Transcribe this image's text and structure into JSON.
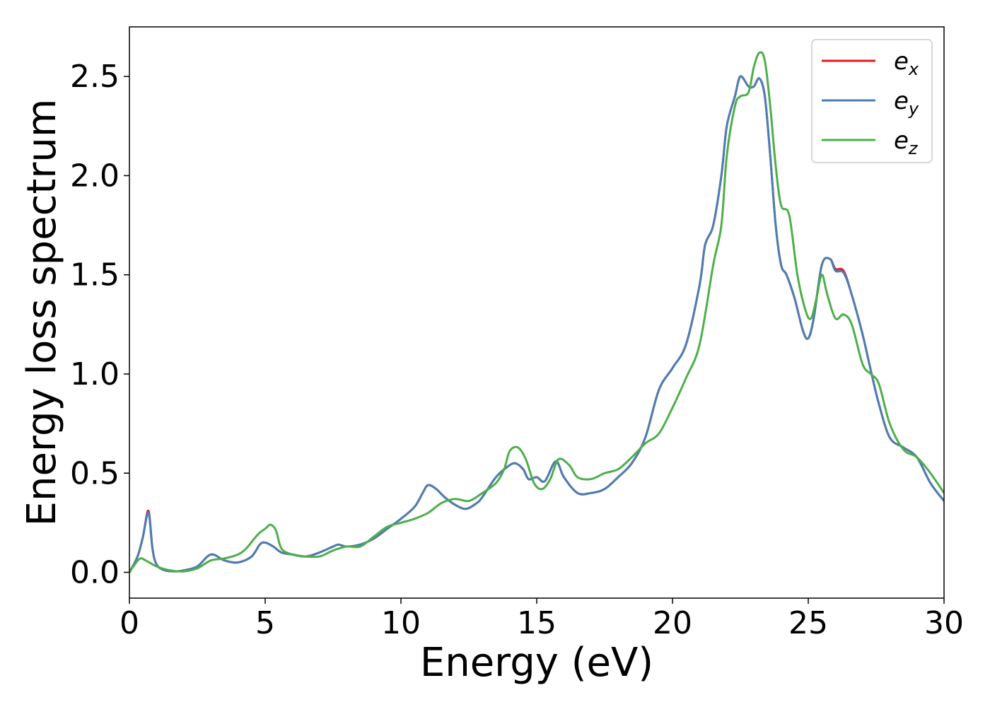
{
  "chart_data": {
    "type": "line",
    "title": "",
    "xlabel": "Energy (eV)",
    "ylabel": "Energy loss spectrum",
    "xlim": [
      0,
      30
    ],
    "ylim": [
      -0.13,
      2.75
    ],
    "xticks": [
      0,
      5,
      10,
      15,
      20,
      25,
      30
    ],
    "xtick_labels": [
      "0",
      "5",
      "10",
      "15",
      "20",
      "25",
      "30"
    ],
    "yticks": [
      0.0,
      0.5,
      1.0,
      1.5,
      2.0,
      2.5
    ],
    "ytick_labels": [
      "0.0",
      "0.5",
      "1.0",
      "1.5",
      "2.0",
      "2.5"
    ],
    "grid": false,
    "legend_position": "top-right",
    "series": [
      {
        "name": "e_x",
        "label_base": "e",
        "label_sub": "x",
        "color": "#e41a1c",
        "x": [
          0,
          0.3,
          0.5,
          0.7,
          0.85,
          1.0,
          1.3,
          1.7,
          2.0,
          2.5,
          3.0,
          3.5,
          4.0,
          4.5,
          4.8,
          5.0,
          5.3,
          5.6,
          6.0,
          6.5,
          7.0,
          7.5,
          7.7,
          8.0,
          8.5,
          9.0,
          9.5,
          10.0,
          10.5,
          10.8,
          11.0,
          11.3,
          11.6,
          12.0,
          12.4,
          12.8,
          13.0,
          13.5,
          13.9,
          14.2,
          14.5,
          14.7,
          15.0,
          15.3,
          15.7,
          16.0,
          16.5,
          17.0,
          17.5,
          18.0,
          18.5,
          19.0,
          19.5,
          20.0,
          20.5,
          21.0,
          21.2,
          21.5,
          21.8,
          22.0,
          22.3,
          22.5,
          22.8,
          23.0,
          23.2,
          23.4,
          23.6,
          23.8,
          24.0,
          24.2,
          24.5,
          24.8,
          25.0,
          25.2,
          25.5,
          25.8,
          26.0,
          26.3,
          26.6,
          27.0,
          27.3,
          27.6,
          28.0,
          28.5,
          29.0,
          29.5,
          30.0
        ],
        "y": [
          0.0,
          0.08,
          0.18,
          0.31,
          0.12,
          0.04,
          0.01,
          0.005,
          0.01,
          0.03,
          0.09,
          0.06,
          0.05,
          0.08,
          0.14,
          0.15,
          0.13,
          0.1,
          0.09,
          0.08,
          0.1,
          0.13,
          0.14,
          0.13,
          0.14,
          0.17,
          0.22,
          0.27,
          0.33,
          0.4,
          0.44,
          0.42,
          0.38,
          0.34,
          0.32,
          0.35,
          0.38,
          0.48,
          0.53,
          0.55,
          0.52,
          0.47,
          0.48,
          0.46,
          0.56,
          0.48,
          0.4,
          0.4,
          0.42,
          0.48,
          0.55,
          0.68,
          0.92,
          1.03,
          1.15,
          1.45,
          1.65,
          1.75,
          2.0,
          2.25,
          2.4,
          2.5,
          2.45,
          2.45,
          2.49,
          2.4,
          2.1,
          1.75,
          1.55,
          1.5,
          1.38,
          1.22,
          1.18,
          1.28,
          1.55,
          1.58,
          1.53,
          1.52,
          1.4,
          1.2,
          1.02,
          0.85,
          0.68,
          0.63,
          0.58,
          0.45,
          0.36
        ]
      },
      {
        "name": "e_y",
        "label_base": "e",
        "label_sub": "y",
        "color": "#4a7fb5",
        "x": [
          0,
          0.3,
          0.5,
          0.7,
          0.85,
          1.0,
          1.3,
          1.7,
          2.0,
          2.5,
          3.0,
          3.5,
          4.0,
          4.5,
          4.8,
          5.0,
          5.3,
          5.6,
          6.0,
          6.5,
          7.0,
          7.5,
          7.7,
          8.0,
          8.5,
          9.0,
          9.5,
          10.0,
          10.5,
          10.8,
          11.0,
          11.3,
          11.6,
          12.0,
          12.4,
          12.8,
          13.0,
          13.5,
          13.9,
          14.2,
          14.5,
          14.7,
          15.0,
          15.3,
          15.7,
          16.0,
          16.5,
          17.0,
          17.5,
          18.0,
          18.5,
          19.0,
          19.5,
          20.0,
          20.5,
          21.0,
          21.2,
          21.5,
          21.8,
          22.0,
          22.3,
          22.5,
          22.8,
          23.0,
          23.2,
          23.4,
          23.6,
          23.8,
          24.0,
          24.2,
          24.5,
          24.8,
          25.0,
          25.2,
          25.5,
          25.8,
          26.0,
          26.3,
          26.6,
          27.0,
          27.3,
          27.6,
          28.0,
          28.5,
          29.0,
          29.5,
          30.0
        ],
        "y": [
          0.0,
          0.08,
          0.18,
          0.3,
          0.12,
          0.04,
          0.01,
          0.005,
          0.01,
          0.03,
          0.09,
          0.06,
          0.05,
          0.08,
          0.14,
          0.15,
          0.13,
          0.1,
          0.09,
          0.08,
          0.1,
          0.13,
          0.14,
          0.13,
          0.14,
          0.17,
          0.22,
          0.27,
          0.33,
          0.4,
          0.44,
          0.42,
          0.38,
          0.34,
          0.32,
          0.35,
          0.38,
          0.48,
          0.53,
          0.55,
          0.52,
          0.47,
          0.48,
          0.46,
          0.56,
          0.48,
          0.4,
          0.4,
          0.42,
          0.48,
          0.55,
          0.68,
          0.92,
          1.03,
          1.15,
          1.45,
          1.65,
          1.75,
          2.0,
          2.25,
          2.4,
          2.5,
          2.45,
          2.45,
          2.49,
          2.4,
          2.1,
          1.75,
          1.55,
          1.5,
          1.38,
          1.22,
          1.18,
          1.28,
          1.55,
          1.58,
          1.52,
          1.51,
          1.4,
          1.2,
          1.02,
          0.85,
          0.68,
          0.63,
          0.58,
          0.45,
          0.36
        ]
      },
      {
        "name": "e_z",
        "label_base": "e",
        "label_sub": "z",
        "color": "#4daf4a",
        "x": [
          0,
          0.2,
          0.4,
          0.6,
          1.0,
          1.5,
          2.0,
          2.5,
          3.0,
          3.5,
          4.0,
          4.3,
          4.6,
          4.8,
          5.0,
          5.2,
          5.4,
          5.6,
          6.0,
          6.5,
          7.0,
          7.5,
          8.0,
          8.5,
          9.0,
          9.5,
          10.0,
          10.5,
          11.0,
          11.5,
          12.0,
          12.5,
          13.0,
          13.5,
          13.8,
          14.0,
          14.3,
          14.6,
          14.9,
          15.2,
          15.5,
          15.8,
          16.2,
          16.5,
          17.0,
          17.5,
          18.0,
          18.5,
          19.0,
          19.5,
          20.0,
          20.5,
          21.0,
          21.5,
          21.8,
          22.0,
          22.3,
          22.5,
          22.8,
          23.0,
          23.2,
          23.4,
          23.6,
          23.8,
          24.0,
          24.3,
          24.6,
          24.9,
          25.1,
          25.3,
          25.5,
          25.7,
          26.0,
          26.3,
          26.6,
          27.0,
          27.3,
          27.6,
          28.0,
          28.5,
          29.0,
          29.5,
          30.0
        ],
        "y": [
          0.0,
          0.04,
          0.07,
          0.06,
          0.03,
          0.01,
          0.005,
          0.02,
          0.06,
          0.07,
          0.09,
          0.12,
          0.17,
          0.2,
          0.22,
          0.24,
          0.21,
          0.12,
          0.09,
          0.08,
          0.08,
          0.11,
          0.13,
          0.13,
          0.18,
          0.23,
          0.25,
          0.27,
          0.3,
          0.35,
          0.37,
          0.36,
          0.4,
          0.45,
          0.52,
          0.61,
          0.63,
          0.57,
          0.45,
          0.42,
          0.47,
          0.57,
          0.54,
          0.48,
          0.47,
          0.5,
          0.52,
          0.58,
          0.65,
          0.7,
          0.83,
          0.98,
          1.15,
          1.55,
          1.75,
          2.1,
          2.35,
          2.4,
          2.42,
          2.55,
          2.62,
          2.58,
          2.35,
          2.05,
          1.85,
          1.8,
          1.5,
          1.32,
          1.28,
          1.38,
          1.5,
          1.4,
          1.28,
          1.3,
          1.25,
          1.05,
          1.0,
          0.95,
          0.75,
          0.62,
          0.58,
          0.5,
          0.4
        ]
      }
    ]
  }
}
